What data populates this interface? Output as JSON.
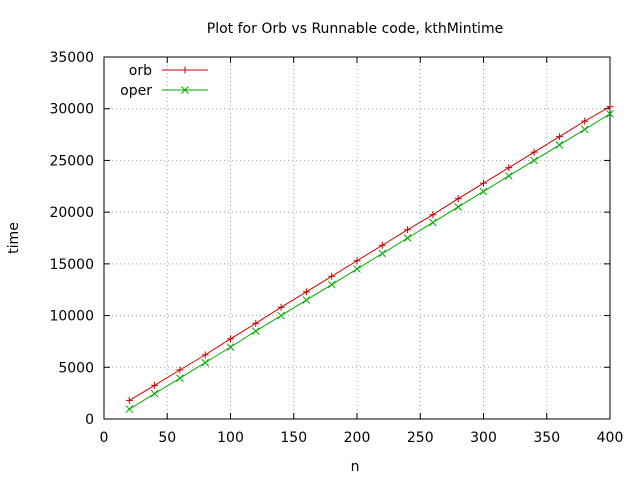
{
  "chart_data": {
    "type": "line",
    "title": "Plot for Orb vs Runnable code, kthMintime",
    "xlabel": "n",
    "ylabel": "time",
    "xlim": [
      0,
      400
    ],
    "ylim": [
      0,
      35000
    ],
    "xticks": [
      0,
      50,
      100,
      150,
      200,
      250,
      300,
      350,
      400
    ],
    "yticks": [
      0,
      5000,
      10000,
      15000,
      20000,
      25000,
      30000,
      35000
    ],
    "grid": true,
    "legend_position": "top-left",
    "x": [
      20,
      40,
      60,
      80,
      100,
      120,
      140,
      160,
      180,
      200,
      220,
      240,
      260,
      280,
      300,
      320,
      340,
      360,
      380,
      400
    ],
    "series": [
      {
        "name": "orb",
        "color": "#cc0000",
        "marker": "plus",
        "values": [
          1800,
          3250,
          4750,
          6200,
          7750,
          9250,
          10800,
          12300,
          13800,
          15300,
          16800,
          18300,
          19750,
          21300,
          22800,
          24300,
          25800,
          27300,
          28800,
          30200
        ]
      },
      {
        "name": "oper",
        "color": "#00aa00",
        "marker": "x",
        "values": [
          950,
          2450,
          3950,
          5450,
          6950,
          8500,
          10000,
          11500,
          13000,
          14500,
          16000,
          17500,
          19000,
          20500,
          22000,
          23500,
          25000,
          26500,
          28000,
          29500
        ]
      }
    ]
  }
}
